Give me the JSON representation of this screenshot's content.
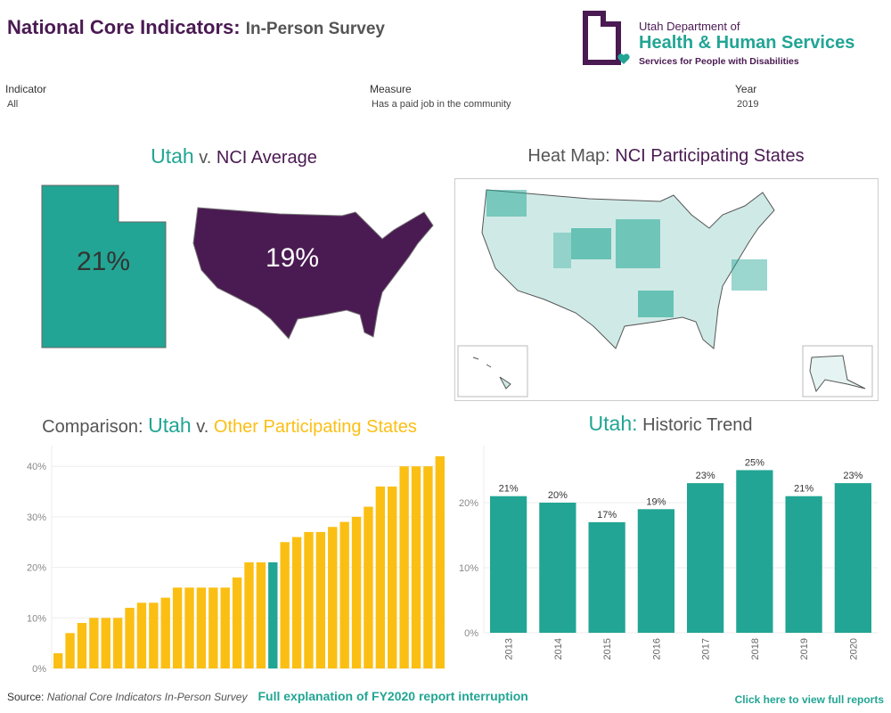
{
  "header": {
    "title_main": "National Core Indicators:",
    "title_sub": "In-Person Survey",
    "logo": {
      "line1": "Utah Department of",
      "line2": "Health & Human Services",
      "line3": "Services for People with Disabilities"
    }
  },
  "filters": [
    {
      "label": "Indicator",
      "value": "All"
    },
    {
      "label": "Measure",
      "value": "Has a paid job in the community"
    },
    {
      "label": "Year",
      "value": "2019"
    }
  ],
  "utah_vs_nci": {
    "title_a": "Utah",
    "title_b": "v.",
    "title_c": "NCI Average",
    "utah_value": "21%",
    "nci_value": "19%"
  },
  "heatmap": {
    "title_a": "Heat Map:",
    "title_b": "NCI Participating States"
  },
  "colors": {
    "teal": "#22a594",
    "purple": "#4a1a52",
    "gold": "#fbbf14"
  },
  "chart_data": [
    {
      "type": "bar",
      "title_parts": [
        "Comparison:",
        "Utah",
        "v.",
        "Other Participating States"
      ],
      "yticks": [
        "0%",
        "10%",
        "20%",
        "30%",
        "40%"
      ],
      "ylim": [
        0,
        43
      ],
      "values": [
        3,
        7,
        9,
        10,
        10,
        10,
        12,
        13,
        13,
        14,
        16,
        16,
        16,
        16,
        16,
        18,
        21,
        21,
        21,
        25,
        26,
        27,
        27,
        28,
        29,
        30,
        32,
        36,
        36,
        40,
        40,
        40,
        42
      ],
      "highlight_index": 18
    },
    {
      "type": "bar",
      "title_parts": [
        "Utah:",
        "Historic Trend"
      ],
      "categories": [
        "2013",
        "2014",
        "2015",
        "2016",
        "2017",
        "2018",
        "2019",
        "2020"
      ],
      "values": [
        21,
        20,
        17,
        19,
        23,
        25,
        21,
        23
      ],
      "labels": [
        "21%",
        "20%",
        "17%",
        "19%",
        "23%",
        "25%",
        "21%",
        "23%"
      ],
      "yticks": [
        "0%",
        "10%",
        "20%"
      ],
      "ylim": [
        0,
        27
      ]
    }
  ],
  "footer": {
    "source_label": "Source:",
    "source_text": "National Core Indicators In-Person Survey",
    "link1": "Full explanation of FY2020 report interruption",
    "link2": "Click here to view full reports"
  }
}
